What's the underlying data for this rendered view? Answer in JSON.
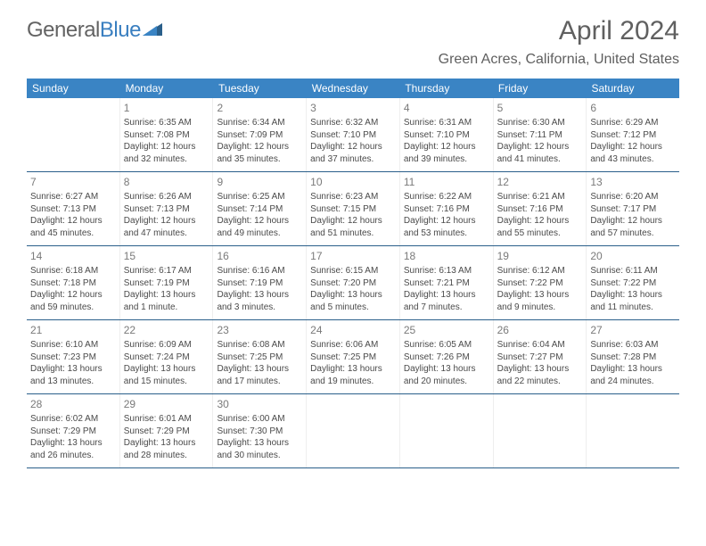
{
  "logo": {
    "text1": "General",
    "text2": "Blue"
  },
  "title": "April 2024",
  "location": "Green Acres, California, United States",
  "colors": {
    "header_bg": "#3a84c4",
    "header_text": "#ffffff",
    "title_text": "#606060",
    "location_text": "#5f5f5f",
    "logo_gray": "#636363",
    "logo_blue": "#3a7fc0",
    "cell_text": "#4a4a4a",
    "daynum_text": "#7a7a7a",
    "row_border": "#2a5f8a"
  },
  "weekdays": [
    "Sunday",
    "Monday",
    "Tuesday",
    "Wednesday",
    "Thursday",
    "Friday",
    "Saturday"
  ],
  "start_offset": 1,
  "days": [
    {
      "n": "1",
      "sr": "Sunrise: 6:35 AM",
      "ss": "Sunset: 7:08 PM",
      "d1": "Daylight: 12 hours",
      "d2": "and 32 minutes."
    },
    {
      "n": "2",
      "sr": "Sunrise: 6:34 AM",
      "ss": "Sunset: 7:09 PM",
      "d1": "Daylight: 12 hours",
      "d2": "and 35 minutes."
    },
    {
      "n": "3",
      "sr": "Sunrise: 6:32 AM",
      "ss": "Sunset: 7:10 PM",
      "d1": "Daylight: 12 hours",
      "d2": "and 37 minutes."
    },
    {
      "n": "4",
      "sr": "Sunrise: 6:31 AM",
      "ss": "Sunset: 7:10 PM",
      "d1": "Daylight: 12 hours",
      "d2": "and 39 minutes."
    },
    {
      "n": "5",
      "sr": "Sunrise: 6:30 AM",
      "ss": "Sunset: 7:11 PM",
      "d1": "Daylight: 12 hours",
      "d2": "and 41 minutes."
    },
    {
      "n": "6",
      "sr": "Sunrise: 6:29 AM",
      "ss": "Sunset: 7:12 PM",
      "d1": "Daylight: 12 hours",
      "d2": "and 43 minutes."
    },
    {
      "n": "7",
      "sr": "Sunrise: 6:27 AM",
      "ss": "Sunset: 7:13 PM",
      "d1": "Daylight: 12 hours",
      "d2": "and 45 minutes."
    },
    {
      "n": "8",
      "sr": "Sunrise: 6:26 AM",
      "ss": "Sunset: 7:13 PM",
      "d1": "Daylight: 12 hours",
      "d2": "and 47 minutes."
    },
    {
      "n": "9",
      "sr": "Sunrise: 6:25 AM",
      "ss": "Sunset: 7:14 PM",
      "d1": "Daylight: 12 hours",
      "d2": "and 49 minutes."
    },
    {
      "n": "10",
      "sr": "Sunrise: 6:23 AM",
      "ss": "Sunset: 7:15 PM",
      "d1": "Daylight: 12 hours",
      "d2": "and 51 minutes."
    },
    {
      "n": "11",
      "sr": "Sunrise: 6:22 AM",
      "ss": "Sunset: 7:16 PM",
      "d1": "Daylight: 12 hours",
      "d2": "and 53 minutes."
    },
    {
      "n": "12",
      "sr": "Sunrise: 6:21 AM",
      "ss": "Sunset: 7:16 PM",
      "d1": "Daylight: 12 hours",
      "d2": "and 55 minutes."
    },
    {
      "n": "13",
      "sr": "Sunrise: 6:20 AM",
      "ss": "Sunset: 7:17 PM",
      "d1": "Daylight: 12 hours",
      "d2": "and 57 minutes."
    },
    {
      "n": "14",
      "sr": "Sunrise: 6:18 AM",
      "ss": "Sunset: 7:18 PM",
      "d1": "Daylight: 12 hours",
      "d2": "and 59 minutes."
    },
    {
      "n": "15",
      "sr": "Sunrise: 6:17 AM",
      "ss": "Sunset: 7:19 PM",
      "d1": "Daylight: 13 hours",
      "d2": "and 1 minute."
    },
    {
      "n": "16",
      "sr": "Sunrise: 6:16 AM",
      "ss": "Sunset: 7:19 PM",
      "d1": "Daylight: 13 hours",
      "d2": "and 3 minutes."
    },
    {
      "n": "17",
      "sr": "Sunrise: 6:15 AM",
      "ss": "Sunset: 7:20 PM",
      "d1": "Daylight: 13 hours",
      "d2": "and 5 minutes."
    },
    {
      "n": "18",
      "sr": "Sunrise: 6:13 AM",
      "ss": "Sunset: 7:21 PM",
      "d1": "Daylight: 13 hours",
      "d2": "and 7 minutes."
    },
    {
      "n": "19",
      "sr": "Sunrise: 6:12 AM",
      "ss": "Sunset: 7:22 PM",
      "d1": "Daylight: 13 hours",
      "d2": "and 9 minutes."
    },
    {
      "n": "20",
      "sr": "Sunrise: 6:11 AM",
      "ss": "Sunset: 7:22 PM",
      "d1": "Daylight: 13 hours",
      "d2": "and 11 minutes."
    },
    {
      "n": "21",
      "sr": "Sunrise: 6:10 AM",
      "ss": "Sunset: 7:23 PM",
      "d1": "Daylight: 13 hours",
      "d2": "and 13 minutes."
    },
    {
      "n": "22",
      "sr": "Sunrise: 6:09 AM",
      "ss": "Sunset: 7:24 PM",
      "d1": "Daylight: 13 hours",
      "d2": "and 15 minutes."
    },
    {
      "n": "23",
      "sr": "Sunrise: 6:08 AM",
      "ss": "Sunset: 7:25 PM",
      "d1": "Daylight: 13 hours",
      "d2": "and 17 minutes."
    },
    {
      "n": "24",
      "sr": "Sunrise: 6:06 AM",
      "ss": "Sunset: 7:25 PM",
      "d1": "Daylight: 13 hours",
      "d2": "and 19 minutes."
    },
    {
      "n": "25",
      "sr": "Sunrise: 6:05 AM",
      "ss": "Sunset: 7:26 PM",
      "d1": "Daylight: 13 hours",
      "d2": "and 20 minutes."
    },
    {
      "n": "26",
      "sr": "Sunrise: 6:04 AM",
      "ss": "Sunset: 7:27 PM",
      "d1": "Daylight: 13 hours",
      "d2": "and 22 minutes."
    },
    {
      "n": "27",
      "sr": "Sunrise: 6:03 AM",
      "ss": "Sunset: 7:28 PM",
      "d1": "Daylight: 13 hours",
      "d2": "and 24 minutes."
    },
    {
      "n": "28",
      "sr": "Sunrise: 6:02 AM",
      "ss": "Sunset: 7:29 PM",
      "d1": "Daylight: 13 hours",
      "d2": "and 26 minutes."
    },
    {
      "n": "29",
      "sr": "Sunrise: 6:01 AM",
      "ss": "Sunset: 7:29 PM",
      "d1": "Daylight: 13 hours",
      "d2": "and 28 minutes."
    },
    {
      "n": "30",
      "sr": "Sunrise: 6:00 AM",
      "ss": "Sunset: 7:30 PM",
      "d1": "Daylight: 13 hours",
      "d2": "and 30 minutes."
    }
  ]
}
